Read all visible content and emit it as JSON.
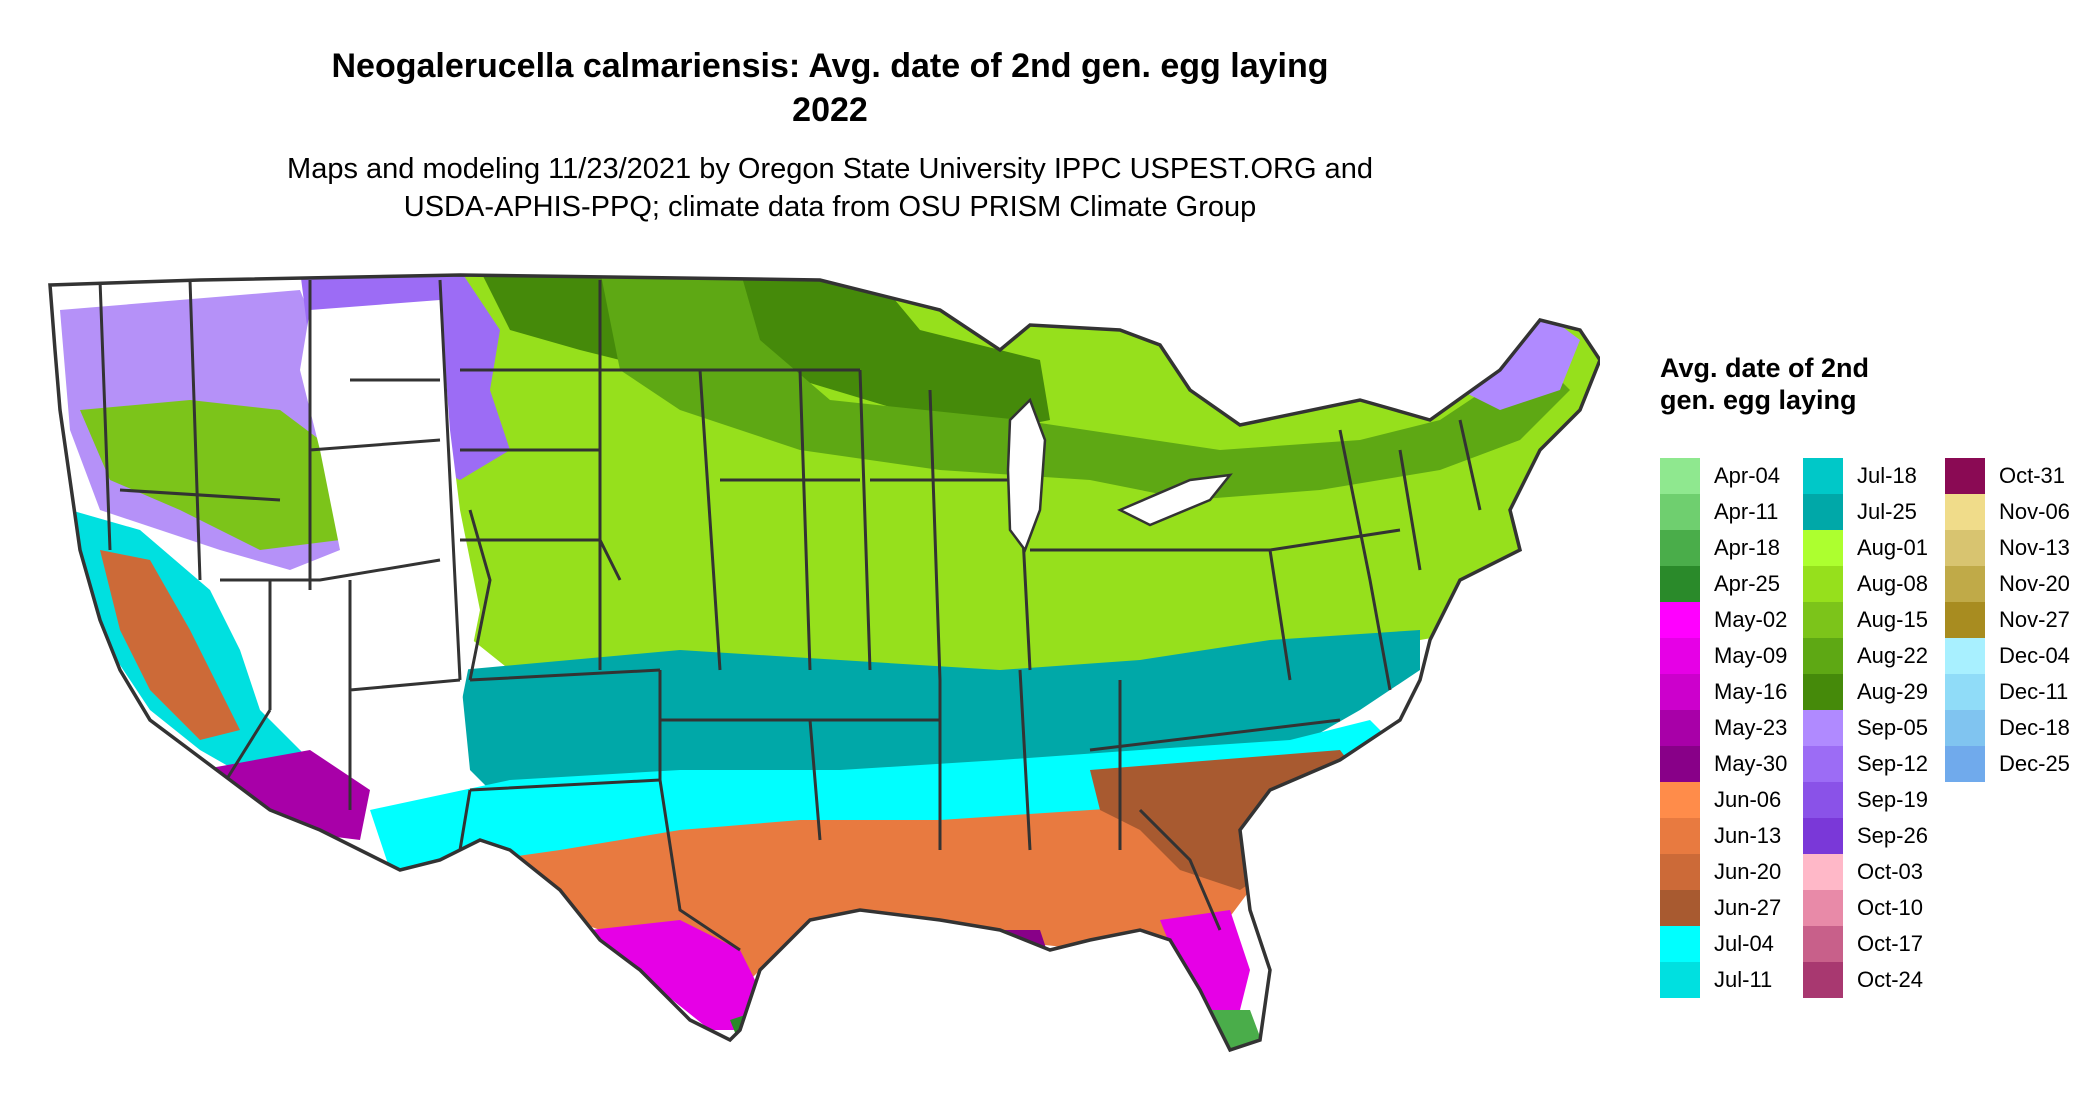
{
  "title_line1": "Neogalerucella calmariensis: Avg. date of 2nd gen. egg laying",
  "title_line2": "2022",
  "subtitle_line1": "Maps and modeling 11/23/2021 by Oregon State University IPPC USPEST.ORG and",
  "subtitle_line2": "USDA-APHIS-PPQ; climate data from OSU PRISM Climate Group",
  "legend": {
    "title": "Avg. date of 2nd gen. egg laying",
    "columns": [
      [
        {
          "label": "Apr-04",
          "color": "#8fe88f"
        },
        {
          "label": "Apr-11",
          "color": "#6fcf6f"
        },
        {
          "label": "Apr-18",
          "color": "#4aad4a"
        },
        {
          "label": "Apr-25",
          "color": "#2a8a2a"
        },
        {
          "label": "May-02",
          "color": "#ff00ff"
        },
        {
          "label": "May-09",
          "color": "#e600e6"
        },
        {
          "label": "May-16",
          "color": "#cc00cc"
        },
        {
          "label": "May-23",
          "color": "#a800a8"
        },
        {
          "label": "May-30",
          "color": "#880088"
        },
        {
          "label": "Jun-06",
          "color": "#ff8c4a"
        },
        {
          "label": "Jun-13",
          "color": "#e87a40"
        },
        {
          "label": "Jun-20",
          "color": "#cc6a38"
        },
        {
          "label": "Jun-27",
          "color": "#a85a30"
        },
        {
          "label": "Jul-04",
          "color": "#00ffff"
        },
        {
          "label": "Jul-11",
          "color": "#00e0e0"
        }
      ],
      [
        {
          "label": "Jul-18",
          "color": "#00c8c8"
        },
        {
          "label": "Jul-25",
          "color": "#00a8a8"
        },
        {
          "label": "Aug-01",
          "color": "#adff2f"
        },
        {
          "label": "Aug-08",
          "color": "#96e01c"
        },
        {
          "label": "Aug-15",
          "color": "#7cc41a"
        },
        {
          "label": "Aug-22",
          "color": "#5ea814"
        },
        {
          "label": "Aug-29",
          "color": "#458a0a"
        },
        {
          "label": "Sep-05",
          "color": "#b08aff"
        },
        {
          "label": "Sep-12",
          "color": "#9c6cf5"
        },
        {
          "label": "Sep-19",
          "color": "#8a52e8"
        },
        {
          "label": "Sep-26",
          "color": "#7a38d8"
        },
        {
          "label": "Oct-03",
          "color": "#ffb8c8"
        },
        {
          "label": "Oct-10",
          "color": "#e88aa8"
        },
        {
          "label": "Oct-17",
          "color": "#c8608a"
        },
        {
          "label": "Oct-24",
          "color": "#a83870"
        }
      ],
      [
        {
          "label": "Oct-31",
          "color": "#8a0a54"
        },
        {
          "label": "Nov-06",
          "color": "#f0dc8a"
        },
        {
          "label": "Nov-13",
          "color": "#d8c470"
        },
        {
          "label": "Nov-20",
          "color": "#c0aa48"
        },
        {
          "label": "Nov-27",
          "color": "#a88c20"
        },
        {
          "label": "Dec-04",
          "color": "#a8f0ff"
        },
        {
          "label": "Dec-11",
          "color": "#90dcf8"
        },
        {
          "label": "Dec-18",
          "color": "#80c4f0"
        },
        {
          "label": "Dec-25",
          "color": "#70aaec"
        }
      ]
    ]
  }
}
